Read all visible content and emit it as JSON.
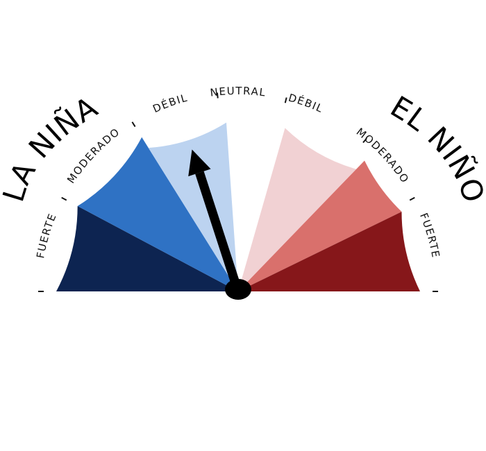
{
  "left_title": "LA NIÑA",
  "right_title": "EL NIÑO",
  "segments": [
    {
      "id": "fuerte-left",
      "label": "FUERTE",
      "color": "#0d2451"
    },
    {
      "id": "moderado-left",
      "label": "MODERADO",
      "color": "#2f72c4"
    },
    {
      "id": "debil-left",
      "label": "DÉBIL",
      "color": "#bcd3f0"
    },
    {
      "id": "neutral",
      "label": "NEUTRAL",
      "color": "#ffffff"
    },
    {
      "id": "debil-right",
      "label": "DÉBIL",
      "color": "#f1d1d3"
    },
    {
      "id": "moderado-right",
      "label": "MODERADO",
      "color": "#d9706c"
    },
    {
      "id": "fuerte-right",
      "label": "FUERTE",
      "color": "#86171a"
    }
  ],
  "needle": {
    "position": "debil-left",
    "color": "#000000"
  }
}
